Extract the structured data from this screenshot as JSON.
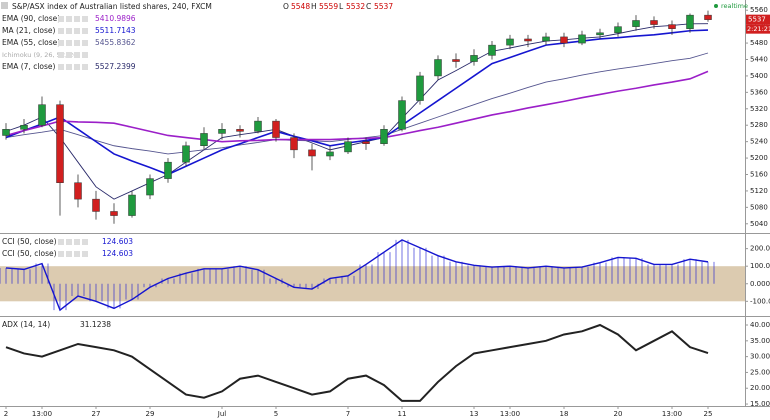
{
  "chart_data": [
    {
      "type": "candlestick",
      "title": "S&P/ASX index of Australian listed shares, 240, FXCM",
      "ohlc_labels": [
        "O",
        "H",
        "L",
        "C"
      ],
      "categories": [
        "2",
        null,
        "13:00",
        null,
        null,
        "27",
        null,
        null,
        "29",
        null,
        null,
        null,
        "Jul",
        null,
        null,
        "5",
        null,
        null,
        null,
        "7",
        null,
        null,
        "11",
        null,
        null,
        null,
        "13",
        null,
        "13:00",
        null,
        null,
        "18",
        null,
        null,
        "20",
        null,
        null,
        "13:00",
        null,
        "25"
      ],
      "open": [
        5255,
        5270,
        5280,
        5330,
        5140,
        5100,
        5070,
        5060,
        5110,
        5150,
        5190,
        5230,
        5260,
        5270,
        5265,
        5290,
        5250,
        5220,
        5205,
        5215,
        5240,
        5235,
        5270,
        5340,
        5400,
        5440,
        5435,
        5450,
        5475,
        5490,
        5485,
        5495,
        5480,
        5500,
        5505,
        5520,
        5535,
        5525,
        5515,
        5548
      ],
      "high": [
        5285,
        5295,
        5350,
        5340,
        5160,
        5120,
        5090,
        5120,
        5160,
        5200,
        5240,
        5275,
        5285,
        5280,
        5300,
        5295,
        5260,
        5235,
        5230,
        5250,
        5250,
        5280,
        5350,
        5410,
        5450,
        5455,
        5465,
        5485,
        5500,
        5500,
        5505,
        5505,
        5510,
        5515,
        5530,
        5548,
        5545,
        5535,
        5552,
        5559
      ],
      "low": [
        5245,
        5260,
        5275,
        5060,
        5080,
        5050,
        5040,
        5055,
        5100,
        5140,
        5180,
        5220,
        5245,
        5250,
        5260,
        5240,
        5200,
        5170,
        5195,
        5210,
        5220,
        5230,
        5265,
        5330,
        5390,
        5420,
        5425,
        5440,
        5465,
        5470,
        5475,
        5470,
        5475,
        5490,
        5495,
        5510,
        5515,
        5500,
        5505,
        5532
      ],
      "close": [
        5270,
        5280,
        5330,
        5140,
        5100,
        5070,
        5060,
        5110,
        5150,
        5190,
        5230,
        5260,
        5270,
        5265,
        5290,
        5250,
        5220,
        5205,
        5215,
        5240,
        5235,
        5270,
        5340,
        5400,
        5440,
        5435,
        5450,
        5475,
        5490,
        5485,
        5495,
        5480,
        5500,
        5505,
        5520,
        5535,
        5525,
        5515,
        5548,
        5537
      ],
      "up_color": "#1f9a3e",
      "down_color": "#d11f1f",
      "series": [
        {
          "name": "EMA (90, close)",
          "color": "#9b1fc8",
          "values": [
            5255,
            5267,
            5278,
            5290,
            5288,
            5287,
            5285,
            5275,
            5265,
            5255,
            5250,
            5245,
            5240,
            5242,
            5243,
            5245,
            5245,
            5245,
            5245,
            5247,
            5248,
            5250,
            5258,
            5267,
            5275,
            5285,
            5295,
            5305,
            5313,
            5322,
            5330,
            5338,
            5347,
            5355,
            5363,
            5370,
            5378,
            5385,
            5393,
            5410.9896
          ]
        },
        {
          "name": "MA (21, close)",
          "color": "#1515d0",
          "values": [
            5250,
            5267,
            5283,
            5300,
            5270,
            5240,
            5210,
            5193,
            5177,
            5160,
            5180,
            5200,
            5220,
            5235,
            5250,
            5265,
            5253,
            5242,
            5230,
            5237,
            5243,
            5250,
            5280,
            5310,
            5340,
            5370,
            5400,
            5430,
            5445,
            5460,
            5475,
            5480,
            5485,
            5490,
            5493,
            5497,
            5500,
            5505,
            5510,
            5511.7143
          ]
        },
        {
          "name": "EMA (55, close)",
          "color": "#55558f",
          "values": [
            5250,
            5257,
            5263,
            5270,
            5257,
            5243,
            5230,
            5223,
            5217,
            5210,
            5215,
            5220,
            5225,
            5232,
            5238,
            5245,
            5243,
            5242,
            5240,
            5245,
            5250,
            5255,
            5270,
            5285,
            5300,
            5315,
            5330,
            5345,
            5358,
            5372,
            5385,
            5393,
            5402,
            5410,
            5417,
            5423,
            5430,
            5437,
            5443,
            5455.8362
          ]
        },
        {
          "name": "EMA (7, close)",
          "color": "#2a2a6a",
          "values": [
            5265,
            5280,
            5300,
            5250,
            5190,
            5130,
            5100,
            5120,
            5140,
            5160,
            5190,
            5220,
            5250,
            5257,
            5263,
            5270,
            5253,
            5237,
            5220,
            5230,
            5240,
            5250,
            5297,
            5343,
            5390,
            5413,
            5437,
            5460,
            5468,
            5477,
            5485,
            5488,
            5492,
            5495,
            5503,
            5512,
            5520,
            5523,
            5527,
            5527.2399
          ]
        }
      ],
      "hidden_indicator": "Ichimoku (9, 26, 52, 26)",
      "ylim": [
        5020,
        5580
      ],
      "yticks": [
        5040,
        5080,
        5120,
        5160,
        5200,
        5240,
        5280,
        5320,
        5360,
        5400,
        5440,
        5480,
        5520,
        5560
      ],
      "status": "realtime",
      "countdown": "2:21:21"
    },
    {
      "type": "line",
      "series": [
        {
          "name": "CCI (50, close)",
          "color": "#1515d0",
          "values": [
            90,
            82,
            115,
            -150,
            -70,
            -100,
            -140,
            -90,
            -20,
            30,
            60,
            85,
            85,
            100,
            80,
            30,
            -20,
            -30,
            30,
            45,
            110,
            180,
            250,
            205,
            160,
            125,
            105,
            95,
            100,
            90,
            100,
            90,
            95,
            120,
            150,
            145,
            110,
            110,
            140,
            124.603
          ]
        }
      ],
      "band": [
        -100,
        100
      ],
      "band_color": "#dccbb0",
      "ylim": [
        -178,
        272
      ],
      "yticks": [
        {
          "value": -100,
          "label": "-100.0000"
        },
        {
          "value": 0,
          "label": "0.0000"
        },
        {
          "value": 100,
          "label": "100.0000"
        },
        {
          "value": 200,
          "label": "200.0000"
        }
      ]
    },
    {
      "type": "line",
      "series": [
        {
          "name": "ADX (14, 14)",
          "color": "#222222",
          "values": [
            33,
            31,
            30,
            32,
            34,
            33,
            32,
            30,
            26,
            22,
            18,
            17,
            19,
            23,
            24,
            22,
            20,
            18,
            19,
            23,
            24,
            21,
            16,
            16,
            22,
            27,
            31,
            32,
            33,
            34,
            35,
            37,
            38,
            40,
            37,
            32,
            35,
            38,
            33,
            31.1238
          ]
        }
      ],
      "ylim": [
        14.7,
        41.9
      ],
      "yticks": [
        {
          "value": 15,
          "label": "15.0000"
        },
        {
          "value": 20,
          "label": "20.0000"
        },
        {
          "value": 25,
          "label": "25.0000"
        },
        {
          "value": 30,
          "label": "30.0000"
        },
        {
          "value": 35,
          "label": "35.0000"
        },
        {
          "value": 40,
          "label": "40.0000"
        }
      ]
    }
  ]
}
